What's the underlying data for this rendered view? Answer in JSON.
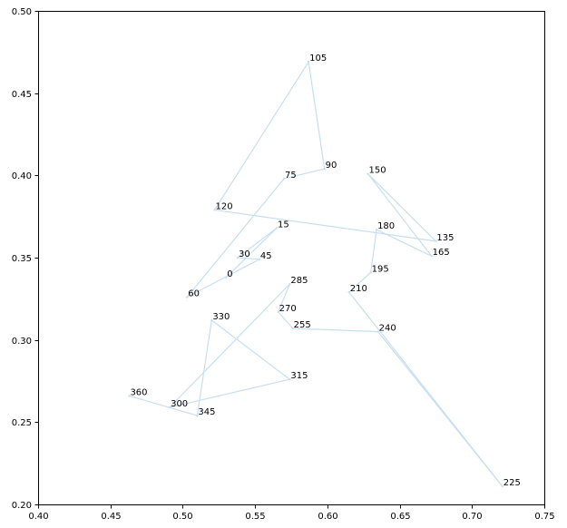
{
  "chart_data": {
    "type": "line",
    "title": "",
    "xlabel": "",
    "ylabel": "",
    "xlim": [
      0.4,
      0.75
    ],
    "ylim": [
      0.2,
      0.5
    ],
    "x_ticks": [
      0.4,
      0.45,
      0.5,
      0.55,
      0.6,
      0.65,
      0.7,
      0.75
    ],
    "x_tick_labels": [
      "0.40",
      "0.45",
      "0.50",
      "0.55",
      "0.60",
      "0.65",
      "0.70",
      "0.75"
    ],
    "y_ticks": [
      0.2,
      0.25,
      0.3,
      0.35,
      0.4,
      0.45,
      0.5
    ],
    "y_tick_labels": [
      "0.20",
      "0.25",
      "0.30",
      "0.35",
      "0.40",
      "0.45",
      "0.50"
    ],
    "grid": false,
    "line_color": "#c6dff0",
    "series": [
      {
        "points": [
          {
            "label": "0",
            "x": 0.53,
            "y": 0.338
          },
          {
            "label": "15",
            "x": 0.565,
            "y": 0.368
          },
          {
            "label": "30",
            "x": 0.538,
            "y": 0.35
          },
          {
            "label": "45",
            "x": 0.553,
            "y": 0.349
          },
          {
            "label": "60",
            "x": 0.503,
            "y": 0.326
          },
          {
            "label": "75",
            "x": 0.57,
            "y": 0.398
          },
          {
            "label": "90",
            "x": 0.598,
            "y": 0.404
          },
          {
            "label": "105",
            "x": 0.587,
            "y": 0.469
          },
          {
            "label": "120",
            "x": 0.522,
            "y": 0.379
          },
          {
            "label": "135",
            "x": 0.675,
            "y": 0.36
          },
          {
            "label": "150",
            "x": 0.628,
            "y": 0.401
          },
          {
            "label": "165",
            "x": 0.672,
            "y": 0.351
          },
          {
            "label": "180",
            "x": 0.634,
            "y": 0.367
          },
          {
            "label": "195",
            "x": 0.63,
            "y": 0.341
          },
          {
            "label": "210",
            "x": 0.615,
            "y": 0.329
          },
          {
            "label": "225",
            "x": 0.721,
            "y": 0.211
          },
          {
            "label": "240",
            "x": 0.635,
            "y": 0.305
          },
          {
            "label": "255",
            "x": 0.576,
            "y": 0.307
          },
          {
            "label": "270",
            "x": 0.566,
            "y": 0.317
          },
          {
            "label": "285",
            "x": 0.574,
            "y": 0.334
          },
          {
            "label": "300",
            "x": 0.491,
            "y": 0.259
          },
          {
            "label": "315",
            "x": 0.574,
            "y": 0.276
          },
          {
            "label": "330",
            "x": 0.52,
            "y": 0.312
          },
          {
            "label": "345",
            "x": 0.51,
            "y": 0.254
          },
          {
            "label": "360",
            "x": 0.463,
            "y": 0.266
          }
        ]
      }
    ]
  }
}
